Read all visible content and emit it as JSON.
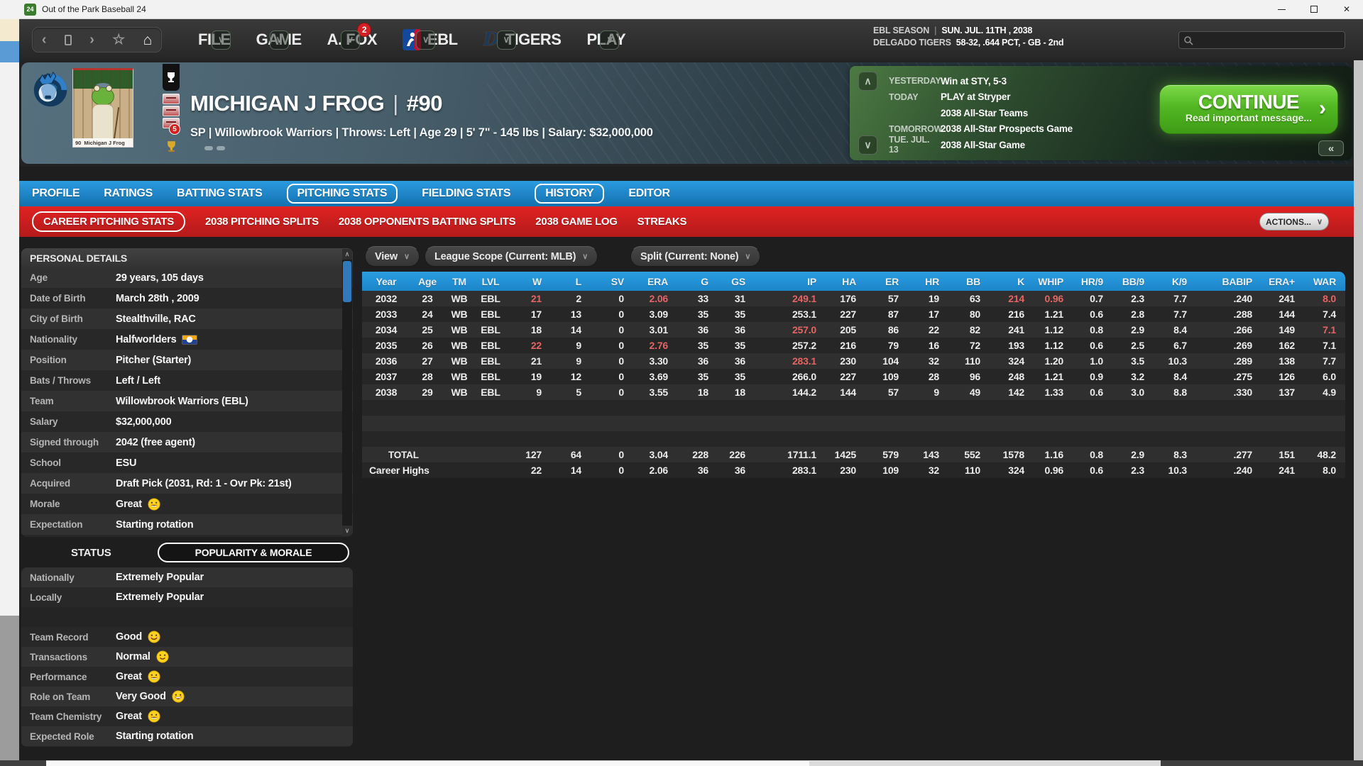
{
  "window": {
    "title": "Out of the Park Baseball 24",
    "app_icon": "24"
  },
  "nav": {
    "menus": [
      {
        "label": "FILE"
      },
      {
        "label": "GAME"
      },
      {
        "label": "A. FOX",
        "badge": "2"
      },
      {
        "label": "EBL",
        "icon": "ebl-logo"
      },
      {
        "label": "TIGERS",
        "icon": "tigers-logo"
      },
      {
        "label": "PLAY"
      }
    ],
    "season": {
      "label": "EBL SEASON",
      "separator": "|",
      "date": "SUN. JUL. 11TH , 2038"
    },
    "team_status": {
      "label": "DELGADO TIGERS",
      "value": "58-32, .644 PCT, - GB - 2nd"
    }
  },
  "player": {
    "name": "MICHIGAN J FROG",
    "separator": "|",
    "number": "#90",
    "info_line": "SP  |  Willowbrook Warriors  |  Throws: Left  |  Age 29  |  5' 7\" - 145 lbs  |  Salary: $32,000,000",
    "photo_caption_number": "90",
    "photo_caption_name": "Michigan J Frog",
    "award_badge_count": "5"
  },
  "schedule": {
    "rows": [
      {
        "label": "YESTERDAY",
        "value": "Win at STY, 5-3"
      },
      {
        "label": "TODAY",
        "value": "PLAY at Stryper"
      },
      {
        "label": "",
        "value": "2038 All-Star Teams"
      },
      {
        "label": "TOMORROW",
        "value": "2038 All-Star Prospects Game"
      },
      {
        "label": "TUE. JUL. 13",
        "value": "2038 All-Star Game"
      }
    ],
    "continue_button": {
      "label": "CONTINUE",
      "sublabel": "Read important message...",
      "arrow": "›"
    }
  },
  "tabs": [
    {
      "label": "PROFILE",
      "outlined": false
    },
    {
      "label": "RATINGS",
      "outlined": false
    },
    {
      "label": "BATTING STATS",
      "outlined": false
    },
    {
      "label": "PITCHING STATS",
      "outlined": true
    },
    {
      "label": "FIELDING STATS",
      "outlined": false
    },
    {
      "label": "HISTORY",
      "outlined": true
    },
    {
      "label": "EDITOR",
      "outlined": false
    }
  ],
  "subtabs": [
    {
      "label": "CAREER PITCHING STATS",
      "outlined": true
    },
    {
      "label": "2038 PITCHING SPLITS",
      "outlined": false
    },
    {
      "label": "2038 OPPONENTS BATTING SPLITS",
      "outlined": false
    },
    {
      "label": "2038 GAME LOG",
      "outlined": false
    },
    {
      "label": "STREAKS",
      "outlined": false
    }
  ],
  "actions_button": "ACTIONS...",
  "personal_details": {
    "title": "PERSONAL DETAILS",
    "rows": [
      {
        "label": "Age",
        "value": "29 years, 105 days"
      },
      {
        "label": "Date of Birth",
        "value": "March 28th , 2009"
      },
      {
        "label": "City of Birth",
        "value": "Stealthville, RAC"
      },
      {
        "label": "Nationality",
        "value": "Halfworlders",
        "flag": true
      },
      {
        "label": "Position",
        "value": "Pitcher (Starter)"
      },
      {
        "label": "Bats / Throws",
        "value": "Left / Left"
      },
      {
        "label": "Team",
        "value": "Willowbrook Warriors (EBL)"
      },
      {
        "label": "Salary",
        "value": "$32,000,000"
      },
      {
        "label": "Signed through",
        "value": "2042 (free agent)"
      },
      {
        "label": "School",
        "value": "ESU"
      },
      {
        "label": "Acquired",
        "value": "Draft Pick (2031, Rd: 1 - Ovr Pk: 21st)"
      },
      {
        "label": "Morale",
        "value": "Great",
        "emoji": "grin"
      },
      {
        "label": "Expectation",
        "value": "Starting rotation"
      }
    ]
  },
  "status_section": {
    "tab_status": "STATUS",
    "tab_popularity": "POPULARITY & MORALE",
    "rows": [
      {
        "label": "Nationally",
        "value": "Extremely Popular"
      },
      {
        "label": "Locally",
        "value": "Extremely Popular"
      },
      {
        "label": "",
        "value": "",
        "spacer": true
      },
      {
        "label": "Team Record",
        "value": "Good",
        "emoji": "smile"
      },
      {
        "label": "Transactions",
        "value": "Normal",
        "emoji": "slight"
      },
      {
        "label": "Performance",
        "value": "Great",
        "emoji": "grin"
      },
      {
        "label": "Role on Team",
        "value": "Very Good",
        "emoji": "grin2"
      },
      {
        "label": "Team Chemistry",
        "value": "Great",
        "emoji": "grin"
      },
      {
        "label": "Expected Role",
        "value": "Starting rotation"
      }
    ]
  },
  "filters": [
    {
      "label": "View"
    },
    {
      "label": "League Scope (Current: MLB)"
    },
    {
      "label": "Split (Current: None)"
    }
  ],
  "stats_table": {
    "columns": [
      "Year",
      "Age",
      "TM",
      "LVL",
      "W",
      "L",
      "SV",
      "ERA",
      "G",
      "GS",
      "IP",
      "HA",
      "ER",
      "HR",
      "BB",
      "K",
      "WHIP",
      "HR/9",
      "BB/9",
      "K/9",
      "BABIP",
      "ERA+",
      "WAR"
    ],
    "rows": [
      {
        "cells": [
          "2032",
          "23",
          "WB",
          "EBL",
          "21",
          "2",
          "0",
          "2.06",
          "33",
          "31",
          "249.1",
          "176",
          "57",
          "19",
          "63",
          "214",
          "0.96",
          "0.7",
          "2.3",
          "7.7",
          ".240",
          "241",
          "8.0"
        ],
        "red": [
          4,
          7,
          10,
          15,
          16,
          22
        ]
      },
      {
        "cells": [
          "2033",
          "24",
          "WB",
          "EBL",
          "17",
          "13",
          "0",
          "3.09",
          "35",
          "35",
          "253.1",
          "227",
          "87",
          "17",
          "80",
          "216",
          "1.21",
          "0.6",
          "2.8",
          "7.7",
          ".288",
          "144",
          "7.4"
        ],
        "red": []
      },
      {
        "cells": [
          "2034",
          "25",
          "WB",
          "EBL",
          "18",
          "14",
          "0",
          "3.01",
          "36",
          "36",
          "257.0",
          "205",
          "86",
          "22",
          "82",
          "241",
          "1.12",
          "0.8",
          "2.9",
          "8.4",
          ".266",
          "149",
          "7.1"
        ],
        "red": [
          10,
          22
        ]
      },
      {
        "cells": [
          "2035",
          "26",
          "WB",
          "EBL",
          "22",
          "9",
          "0",
          "2.76",
          "35",
          "35",
          "257.2",
          "216",
          "79",
          "16",
          "72",
          "193",
          "1.12",
          "0.6",
          "2.5",
          "6.7",
          ".269",
          "162",
          "7.1"
        ],
        "red": [
          4,
          7
        ]
      },
      {
        "cells": [
          "2036",
          "27",
          "WB",
          "EBL",
          "21",
          "9",
          "0",
          "3.30",
          "36",
          "36",
          "283.1",
          "230",
          "104",
          "32",
          "110",
          "324",
          "1.20",
          "1.0",
          "3.5",
          "10.3",
          ".289",
          "138",
          "7.7"
        ],
        "red": [
          10
        ]
      },
      {
        "cells": [
          "2037",
          "28",
          "WB",
          "EBL",
          "19",
          "12",
          "0",
          "3.69",
          "35",
          "35",
          "266.0",
          "227",
          "109",
          "28",
          "96",
          "248",
          "1.21",
          "0.9",
          "3.2",
          "8.4",
          ".275",
          "126",
          "6.0"
        ],
        "red": []
      },
      {
        "cells": [
          "2038",
          "29",
          "WB",
          "EBL",
          "9",
          "5",
          "0",
          "3.55",
          "18",
          "18",
          "144.2",
          "144",
          "57",
          "9",
          "49",
          "142",
          "1.33",
          "0.6",
          "3.0",
          "8.8",
          ".330",
          "137",
          "4.9"
        ],
        "red": []
      }
    ],
    "spacer_rows": 3,
    "summary_rows": [
      {
        "label": "TOTAL",
        "cells": [
          "127",
          "64",
          "0",
          "3.04",
          "228",
          "226",
          "1711.1",
          "1425",
          "579",
          "143",
          "552",
          "1578",
          "1.16",
          "0.8",
          "2.9",
          "8.3",
          ".277",
          "151",
          "48.2"
        ]
      },
      {
        "label": "Career Highs",
        "cells": [
          "22",
          "14",
          "0",
          "2.06",
          "36",
          "36",
          "283.1",
          "230",
          "109",
          "32",
          "110",
          "324",
          "0.96",
          "0.6",
          "2.3",
          "10.3",
          ".240",
          "241",
          "8.0"
        ]
      }
    ]
  },
  "colors": {
    "accent_blue": "#1d86c8",
    "accent_red": "#d42020",
    "continue_green": "#4aa81e",
    "stat_red": "#e66464"
  }
}
